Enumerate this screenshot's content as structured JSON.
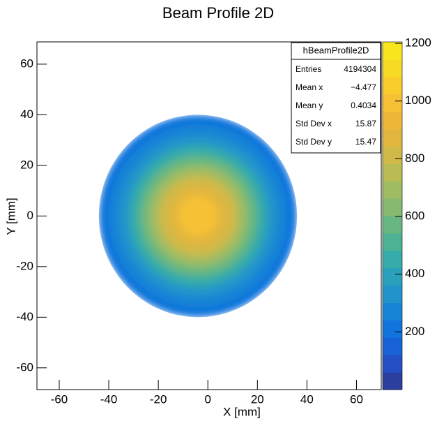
{
  "chart_data": {
    "type": "heatmap",
    "title": "Beam Profile 2D",
    "xlabel": "X [mm]",
    "ylabel": "Y [mm]",
    "xlim": [
      -69,
      70
    ],
    "ylim": [
      -68.6,
      68.8
    ],
    "xticks": [
      -60,
      -40,
      -20,
      0,
      20,
      40,
      60
    ],
    "yticks": [
      -60,
      -40,
      -20,
      0,
      20,
      40,
      60
    ],
    "zlim": [
      0,
      1205
    ],
    "zticks": [
      200,
      400,
      600,
      800,
      1000,
      1200
    ],
    "palette": [
      "#2b3f9e",
      "#2350c4",
      "#1762d6",
      "#1173dc",
      "#1784d6",
      "#2394cb",
      "#2aa1bc",
      "#35abaa",
      "#4db294",
      "#68b780",
      "#85ba70",
      "#a0bc62",
      "#b9bc54",
      "#d0b948",
      "#e2b63e",
      "#efb73a",
      "#f6c134",
      "#f8cd2c",
      "#f7da23",
      "#f6e61b"
    ],
    "center": [
      -4,
      0
    ],
    "radii": [
      40,
      36,
      32,
      28,
      24,
      20,
      16,
      12,
      8,
      4
    ],
    "values": [
      230,
      290,
      360,
      450,
      560,
      680,
      800,
      900,
      970,
      1010
    ],
    "stats": {
      "title": "hBeamProfile2D",
      "rows": [
        [
          "Entries",
          "4194304"
        ],
        [
          "Mean x",
          "−4.477"
        ],
        [
          "Mean y",
          "0.4034"
        ],
        [
          "Std Dev x",
          "15.87"
        ],
        [
          "Std Dev y",
          "15.47"
        ]
      ]
    }
  }
}
